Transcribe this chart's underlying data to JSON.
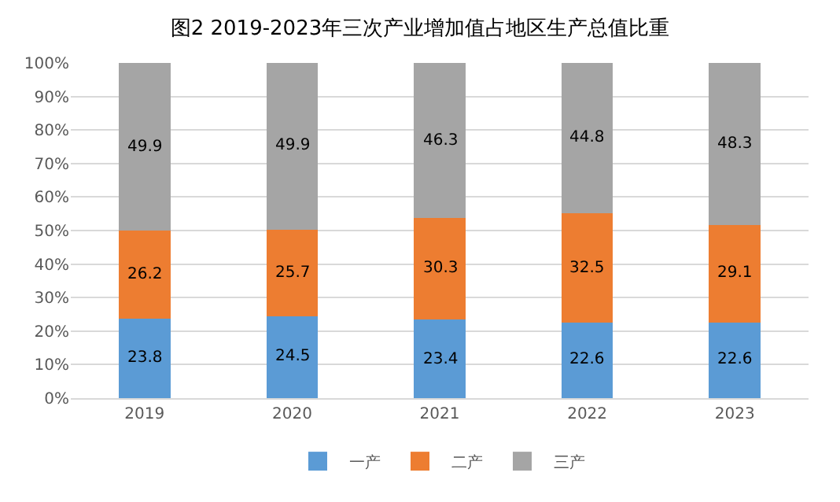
{
  "chart_data": {
    "type": "bar",
    "title": "图2 2019-2023年三次产业增加值占地区生产总值比重",
    "stacked": true,
    "categories": [
      "2019",
      "2020",
      "2021",
      "2022",
      "2023"
    ],
    "series": [
      {
        "name": "一产",
        "color": "#5b9bd5",
        "values": [
          23.8,
          24.5,
          23.4,
          22.6,
          22.6
        ]
      },
      {
        "name": "二产",
        "color": "#ed7d31",
        "values": [
          26.2,
          25.7,
          30.3,
          32.5,
          29.1
        ]
      },
      {
        "name": "三产",
        "color": "#a5a5a5",
        "values": [
          49.9,
          49.9,
          46.3,
          44.8,
          48.3
        ]
      }
    ],
    "ylim": [
      0,
      100
    ],
    "yticks": [
      {
        "value": 0,
        "label": "0%"
      },
      {
        "value": 10,
        "label": "10%"
      },
      {
        "value": 20,
        "label": "20%"
      },
      {
        "value": 30,
        "label": "30%"
      },
      {
        "value": 40,
        "label": "40%"
      },
      {
        "value": 50,
        "label": "50%"
      },
      {
        "value": 60,
        "label": "60%"
      },
      {
        "value": 70,
        "label": "70%"
      },
      {
        "value": 80,
        "label": "80%"
      },
      {
        "value": 90,
        "label": "90%"
      },
      {
        "value": 100,
        "label": "100%"
      }
    ],
    "grid": "y",
    "legend": "bottom",
    "data_labels": true
  }
}
